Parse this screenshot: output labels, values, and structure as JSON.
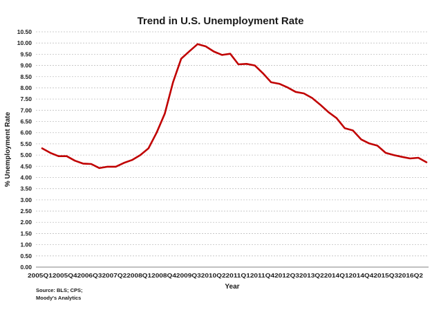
{
  "chart_data": {
    "type": "line",
    "title": "Trend in U.S. Unemployment Rate",
    "xlabel": "Year",
    "ylabel": "% Unemployment Rate",
    "ylim": [
      0,
      10.5
    ],
    "y_ticks": [
      "0.00",
      "0.50",
      "1.00",
      "1.50",
      "2.00",
      "2.50",
      "3.00",
      "3.50",
      "4.00",
      "4.50",
      "5.00",
      "5.50",
      "6.00",
      "6.50",
      "7.00",
      "7.50",
      "8.00",
      "8.50",
      "9.00",
      "9.50",
      "10.00",
      "10.50"
    ],
    "x_tick_labels_text": "2005Q12005Q42006Q32007Q22008Q12008Q42009Q32010Q22011Q12011Q42012Q32013Q22014Q12014Q42015Q32016Q2",
    "x_tick_labels": [
      "2005Q1",
      "2005Q4",
      "2006Q3",
      "2007Q2",
      "2008Q1",
      "2008Q4",
      "2009Q3",
      "2010Q2",
      "2011Q1",
      "2011Q4",
      "2012Q3",
      "2013Q2",
      "2014Q1",
      "2014Q4",
      "2015Q3",
      "2016Q2"
    ],
    "grid": true,
    "line_color": "#c00000",
    "series": [
      {
        "x": [
          "2005Q1",
          "2005Q2",
          "2005Q3",
          "2005Q4",
          "2006Q1",
          "2006Q2",
          "2006Q3",
          "2006Q4",
          "2007Q1",
          "2007Q2",
          "2007Q3",
          "2007Q4",
          "2008Q1",
          "2008Q2",
          "2008Q3",
          "2008Q4",
          "2009Q1",
          "2009Q2",
          "2009Q3",
          "2009Q4",
          "2010Q1",
          "2010Q2",
          "2010Q3",
          "2010Q4",
          "2011Q1",
          "2011Q2",
          "2011Q3",
          "2011Q4",
          "2012Q1",
          "2012Q2",
          "2012Q3",
          "2012Q4",
          "2013Q1",
          "2013Q2",
          "2013Q3",
          "2013Q4",
          "2014Q1",
          "2014Q2",
          "2014Q3",
          "2014Q4",
          "2015Q1",
          "2015Q2",
          "2015Q3",
          "2015Q4",
          "2016Q1",
          "2016Q2",
          "2016Q3"
        ],
        "values": [
          5.3,
          5.1,
          4.95,
          4.95,
          4.75,
          4.62,
          4.6,
          4.42,
          4.48,
          4.48,
          4.65,
          4.78,
          5.0,
          5.3,
          6.0,
          6.85,
          8.25,
          9.3,
          9.63,
          9.95,
          9.85,
          9.62,
          9.47,
          9.52,
          9.05,
          9.07,
          9.0,
          8.65,
          8.25,
          8.18,
          8.02,
          7.82,
          7.75,
          7.55,
          7.25,
          6.92,
          6.65,
          6.2,
          6.1,
          5.7,
          5.52,
          5.42,
          5.1,
          5.0,
          4.92,
          4.85,
          4.88
        ]
      },
      {
        "x": [
          "2016Q4"
        ],
        "values": [
          4.68
        ]
      }
    ]
  },
  "source_lines": [
    "Source: BLS; CPS;",
    "Moody's Analytics"
  ]
}
